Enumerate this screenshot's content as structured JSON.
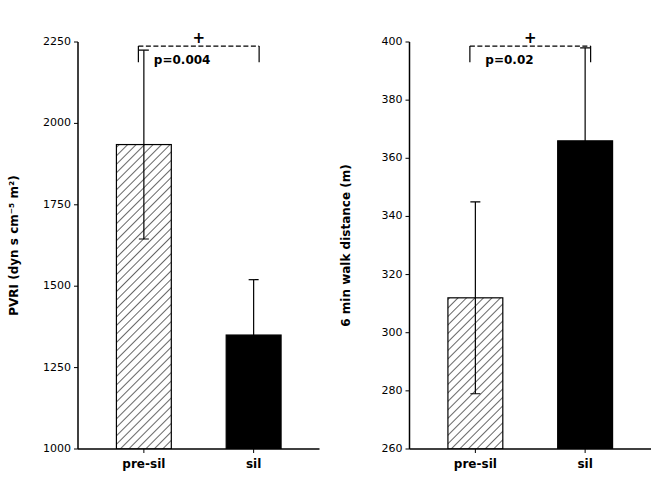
{
  "chart_data": [
    {
      "type": "bar",
      "categories": [
        "pre-sil",
        "sil"
      ],
      "values": [
        1935,
        1350
      ],
      "errors": [
        290,
        170
      ],
      "colors": [
        "#ffffff",
        "#000000"
      ],
      "ylim": [
        1000,
        2250
      ],
      "yticks": [
        1000,
        1250,
        1500,
        1750,
        2000,
        2250
      ],
      "ylabel": "PVRI (dyn s cm⁻⁵ m²)",
      "annotations": [
        "+",
        "p=0.004"
      ],
      "grid": false
    },
    {
      "type": "bar",
      "categories": [
        "pre-sil",
        "sil"
      ],
      "values": [
        312,
        366
      ],
      "errors": [
        33,
        32
      ],
      "colors": [
        "#ffffff",
        "#000000"
      ],
      "ylim": [
        260,
        400
      ],
      "yticks": [
        260,
        280,
        300,
        320,
        340,
        360,
        380,
        400
      ],
      "ylabel": "6 min walk distance (m)",
      "annotations": [
        "+",
        "p=0.02"
      ],
      "grid": false
    }
  ]
}
